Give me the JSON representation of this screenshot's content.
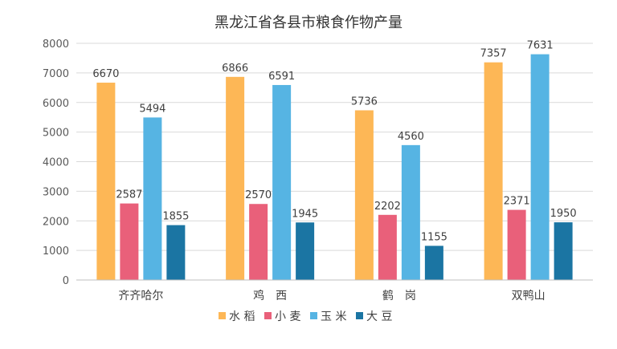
{
  "chart_data": {
    "type": "bar",
    "title": "黑龙江省各县市粮食作物产量",
    "xlabel": "",
    "ylabel": "",
    "categories": [
      "齐齐哈尔",
      "鸡　西",
      "鹤　岗",
      "双鸭山"
    ],
    "ylim": [
      0,
      8000
    ],
    "yticks": [
      0,
      1000,
      2000,
      3000,
      4000,
      5000,
      6000,
      7000,
      8000
    ],
    "grid": true,
    "legend_position": "bottom",
    "series": [
      {
        "name": "水 稻",
        "color": "#FDB756",
        "values": [
          6670,
          6866,
          5736,
          7357
        ]
      },
      {
        "name": "小 麦",
        "color": "#E9607A",
        "values": [
          2587,
          2570,
          2202,
          2371
        ]
      },
      {
        "name": "玉 米",
        "color": "#56B4E3",
        "values": [
          5494,
          6591,
          4560,
          7631
        ]
      },
      {
        "name": "大 豆",
        "color": "#1B75A3",
        "values": [
          1855,
          1945,
          1155,
          1950
        ]
      }
    ]
  }
}
